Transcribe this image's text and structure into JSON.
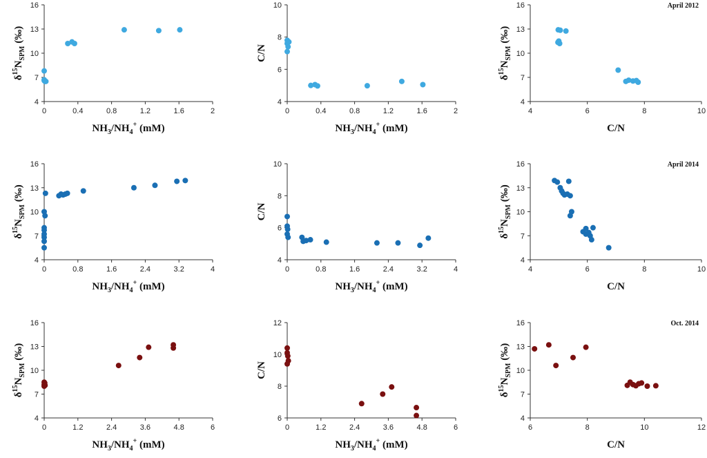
{
  "figure": {
    "rows": [
      {
        "period": "April 2012",
        "color": "#3fa9e0"
      },
      {
        "period": "April 2014",
        "color": "#1a6fb4"
      },
      {
        "period": "Oct. 2014",
        "color": "#7a1010"
      }
    ],
    "labels": {
      "nh": {
        "pre": "NH",
        "s1": "3",
        "mid": "/NH",
        "s2": "4",
        "sup": "+",
        "post": " (mM)"
      },
      "cn": "C/N",
      "d15n": {
        "pre": "δ",
        "sup": "15",
        "mid": "N",
        "sub": "SPM",
        "post": " (‰)"
      }
    }
  },
  "chart_data": [
    {
      "type": "scatter",
      "panel": "a1",
      "period": "April 2012",
      "xlabel": "NH3/NH4+ (mM)",
      "ylabel": "δ15N_SPM (‰)",
      "xlim": [
        0,
        2
      ],
      "ylim": [
        4,
        16
      ],
      "xticks": [
        "0",
        "0.4",
        "0.8",
        "1.2",
        "1.6",
        "2"
      ],
      "yticks": [
        "4",
        "7",
        "10",
        "13",
        "16"
      ],
      "points": [
        [
          0.0,
          7.8
        ],
        [
          0.0,
          6.6
        ],
        [
          0.01,
          6.5
        ],
        [
          0.02,
          6.5
        ],
        [
          0.0,
          6.7
        ],
        [
          0.28,
          11.2
        ],
        [
          0.33,
          11.4
        ],
        [
          0.36,
          11.2
        ],
        [
          0.95,
          12.9
        ],
        [
          1.36,
          12.8
        ],
        [
          1.61,
          12.9
        ]
      ]
    },
    {
      "type": "scatter",
      "panel": "a2",
      "period": "April 2012",
      "xlabel": "NH3/NH4+ (mM)",
      "ylabel": "C/N",
      "xlim": [
        0,
        2
      ],
      "ylim": [
        4,
        10
      ],
      "xticks": [
        "0",
        "0.4",
        "0.8",
        "1.2",
        "1.6",
        "2"
      ],
      "yticks": [
        "4",
        "6",
        "8",
        "10"
      ],
      "points": [
        [
          0.0,
          7.8
        ],
        [
          0.0,
          7.6
        ],
        [
          0.01,
          7.4
        ],
        [
          0.0,
          7.1
        ],
        [
          0.02,
          7.7
        ],
        [
          0.28,
          5.0
        ],
        [
          0.33,
          5.05
        ],
        [
          0.36,
          4.97
        ],
        [
          0.95,
          4.98
        ],
        [
          1.36,
          5.25
        ],
        [
          1.61,
          5.05
        ]
      ]
    },
    {
      "type": "scatter",
      "panel": "a3",
      "period": "April 2012",
      "xlabel": "C/N",
      "ylabel": "δ15N_SPM (‰)",
      "xlim": [
        4,
        10
      ],
      "ylim": [
        4,
        16
      ],
      "xticks": [
        "4",
        "6",
        "8",
        "10"
      ],
      "yticks": [
        "4",
        "7",
        "10",
        "13",
        "16"
      ],
      "points": [
        [
          4.98,
          12.9
        ],
        [
          5.05,
          12.85
        ],
        [
          5.25,
          12.75
        ],
        [
          5.0,
          11.5
        ],
        [
          5.03,
          11.2
        ],
        [
          4.97,
          11.35
        ],
        [
          7.08,
          7.9
        ],
        [
          7.35,
          6.5
        ],
        [
          7.45,
          6.65
        ],
        [
          7.6,
          6.55
        ],
        [
          7.72,
          6.6
        ],
        [
          7.78,
          6.4
        ]
      ]
    },
    {
      "type": "scatter",
      "panel": "b1",
      "period": "April 2014",
      "xlabel": "NH3/NH4+ (mM)",
      "ylabel": "δ15N_SPM (‰)",
      "xlim": [
        0,
        4
      ],
      "ylim": [
        4,
        16
      ],
      "xticks": [
        "0",
        "0.8",
        "1.6",
        "2.4",
        "3.2",
        "4"
      ],
      "yticks": [
        "4",
        "7",
        "10",
        "13",
        "16"
      ],
      "points": [
        [
          0.0,
          5.5
        ],
        [
          0.0,
          6.3
        ],
        [
          0.0,
          6.8
        ],
        [
          0.0,
          7.2
        ],
        [
          0.0,
          7.7
        ],
        [
          0.0,
          8.0
        ],
        [
          0.02,
          9.5
        ],
        [
          0.0,
          10.0
        ],
        [
          0.03,
          12.3
        ],
        [
          0.35,
          12.0
        ],
        [
          0.4,
          12.2
        ],
        [
          0.45,
          12.1
        ],
        [
          0.5,
          12.2
        ],
        [
          0.55,
          12.3
        ],
        [
          0.93,
          12.6
        ],
        [
          2.13,
          13.0
        ],
        [
          2.63,
          13.3
        ],
        [
          3.15,
          13.8
        ],
        [
          3.35,
          13.9
        ]
      ]
    },
    {
      "type": "scatter",
      "panel": "b2",
      "period": "April 2014",
      "xlabel": "NH3/NH4+ (mM)",
      "ylabel": "C/N",
      "xlim": [
        0,
        4
      ],
      "ylim": [
        4,
        10
      ],
      "xticks": [
        "0",
        "0.8",
        "1.6",
        "2.4",
        "3.2",
        "4"
      ],
      "yticks": [
        "4",
        "6",
        "8",
        "10"
      ],
      "points": [
        [
          0.0,
          6.7
        ],
        [
          0.0,
          6.1
        ],
        [
          0.01,
          5.9
        ],
        [
          0.0,
          5.6
        ],
        [
          0.02,
          5.4
        ],
        [
          0.35,
          5.4
        ],
        [
          0.38,
          5.15
        ],
        [
          0.45,
          5.2
        ],
        [
          0.55,
          5.25
        ],
        [
          0.93,
          5.1
        ],
        [
          2.13,
          5.05
        ],
        [
          2.63,
          5.05
        ],
        [
          3.15,
          4.9
        ],
        [
          3.35,
          5.35
        ]
      ]
    },
    {
      "type": "scatter",
      "panel": "b3",
      "period": "April 2014",
      "xlabel": "C/N",
      "ylabel": "δ15N_SPM (‰)",
      "xlim": [
        4,
        10
      ],
      "ylim": [
        4,
        16
      ],
      "xticks": [
        "4",
        "6",
        "8",
        "10"
      ],
      "yticks": [
        "4",
        "7",
        "10",
        "13",
        "16"
      ],
      "points": [
        [
          4.85,
          13.9
        ],
        [
          4.95,
          13.7
        ],
        [
          5.05,
          13.0
        ],
        [
          5.1,
          12.6
        ],
        [
          5.15,
          12.3
        ],
        [
          5.2,
          12.1
        ],
        [
          5.3,
          12.2
        ],
        [
          5.35,
          13.8
        ],
        [
          5.4,
          12.0
        ],
        [
          5.4,
          9.5
        ],
        [
          5.45,
          10.0
        ],
        [
          5.85,
          7.5
        ],
        [
          5.95,
          7.2
        ],
        [
          5.95,
          7.9
        ],
        [
          6.05,
          7.4
        ],
        [
          6.1,
          7.0
        ],
        [
          6.15,
          6.5
        ],
        [
          6.2,
          8.0
        ],
        [
          6.75,
          5.5
        ]
      ]
    },
    {
      "type": "scatter",
      "panel": "c1",
      "period": "Oct. 2014",
      "xlabel": "NH3/NH4+ (mM)",
      "ylabel": "δ15N_SPM (‰)",
      "xlim": [
        0,
        6
      ],
      "ylim": [
        4,
        16
      ],
      "xticks": [
        "0",
        "1.2",
        "2.4",
        "3.6",
        "4.8",
        "6"
      ],
      "yticks": [
        "4",
        "7",
        "10",
        "13",
        "16"
      ],
      "points": [
        [
          0.0,
          8.0
        ],
        [
          0.0,
          8.2
        ],
        [
          0.02,
          8.4
        ],
        [
          0.0,
          8.5
        ],
        [
          0.03,
          8.1
        ],
        [
          2.65,
          10.6
        ],
        [
          3.4,
          11.6
        ],
        [
          3.72,
          12.9
        ],
        [
          4.6,
          13.2
        ],
        [
          4.6,
          12.8
        ]
      ]
    },
    {
      "type": "scatter",
      "panel": "c2",
      "period": "Oct. 2014",
      "xlabel": "NH3/NH4+ (mM)",
      "ylabel": "C/N",
      "xlim": [
        0,
        6
      ],
      "ylim": [
        6,
        12
      ],
      "xticks": [
        "0",
        "1.2",
        "2.4",
        "3.6",
        "4.8",
        "6"
      ],
      "yticks": [
        "6",
        "8",
        "10",
        "12"
      ],
      "points": [
        [
          0.0,
          10.4
        ],
        [
          0.0,
          10.1
        ],
        [
          0.02,
          9.9
        ],
        [
          0.04,
          9.6
        ],
        [
          0.0,
          9.4
        ],
        [
          2.65,
          6.9
        ],
        [
          3.4,
          7.5
        ],
        [
          3.72,
          7.95
        ],
        [
          4.6,
          6.65
        ],
        [
          4.6,
          6.15
        ]
      ]
    },
    {
      "type": "scatter",
      "panel": "c3",
      "period": "Oct. 2014",
      "xlabel": "C/N",
      "ylabel": "δ15N_SPM (‰)",
      "xlim": [
        6,
        12
      ],
      "ylim": [
        4,
        16
      ],
      "xticks": [
        "6",
        "8",
        "10",
        "12"
      ],
      "yticks": [
        "4",
        "7",
        "10",
        "13",
        "16"
      ],
      "points": [
        [
          6.15,
          12.7
        ],
        [
          6.65,
          13.2
        ],
        [
          6.9,
          10.6
        ],
        [
          7.5,
          11.6
        ],
        [
          7.95,
          12.9
        ],
        [
          9.4,
          8.1
        ],
        [
          9.5,
          8.5
        ],
        [
          9.6,
          8.2
        ],
        [
          9.7,
          8.05
        ],
        [
          9.8,
          8.3
        ],
        [
          9.9,
          8.4
        ],
        [
          10.1,
          8.0
        ],
        [
          10.4,
          8.05
        ]
      ]
    }
  ]
}
